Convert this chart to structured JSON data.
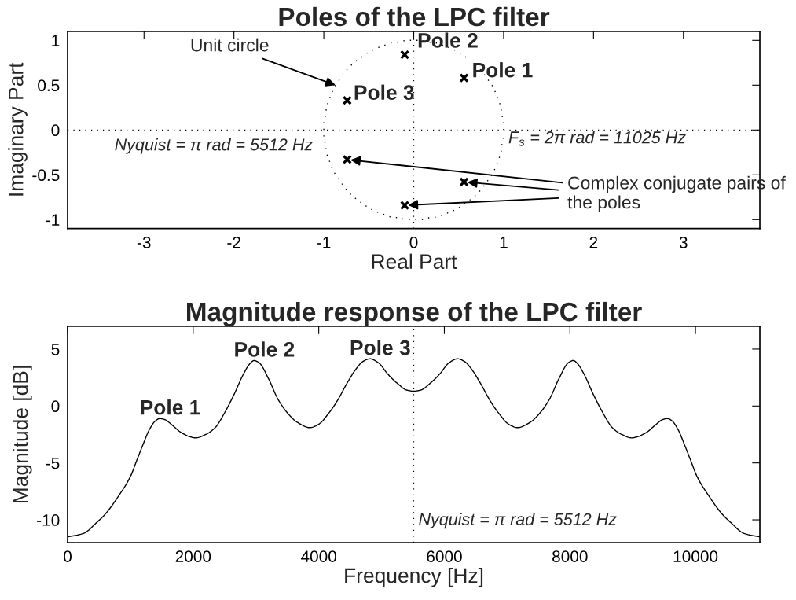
{
  "chart_data": [
    {
      "type": "scatter",
      "title": "Poles of the LPC filter",
      "xlabel": "Real Part",
      "ylabel": "Imaginary Part",
      "xlim": [
        -3.85,
        3.85
      ],
      "ylim": [
        -1.1,
        1.1
      ],
      "xticks": [
        -3,
        -2,
        -1,
        0,
        1,
        2,
        3
      ],
      "yticks": [
        -1,
        -0.5,
        0,
        0.5,
        1
      ],
      "marker": "cross",
      "series": [
        {
          "type": "line",
          "line_style": "dotted",
          "marker": "none",
          "color": "#000000",
          "x": [
            1,
            1,
            0.98,
            0.97,
            0.94,
            0.91,
            0.87,
            0.82,
            0.77,
            0.71,
            0.64,
            0.57,
            0.5,
            0.42,
            0.34,
            0.26,
            0.17,
            0.09,
            0,
            -0.09,
            -0.17,
            -0.26,
            -0.34,
            -0.42,
            -0.5,
            -0.57,
            -0.64,
            -0.71,
            -0.77,
            -0.82,
            -0.87,
            -0.91,
            -0.94,
            -0.97,
            -0.98,
            -1,
            -1,
            -1,
            -0.98,
            -0.97,
            -0.94,
            -0.91,
            -0.87,
            -0.82,
            -0.77,
            -0.71,
            -0.64,
            -0.57,
            -0.5,
            -0.42,
            -0.34,
            -0.26,
            -0.17,
            -0.09,
            0,
            0.09,
            0.17,
            0.26,
            0.34,
            0.42,
            0.5,
            0.57,
            0.64,
            0.71,
            0.77,
            0.82,
            0.87,
            0.91,
            0.94,
            0.97,
            0.98,
            1
          ],
          "values": [
            0,
            0.09,
            0.17,
            0.26,
            0.34,
            0.42,
            0.5,
            0.57,
            0.64,
            0.71,
            0.77,
            0.82,
            0.87,
            0.91,
            0.94,
            0.97,
            0.98,
            1,
            1,
            1,
            0.98,
            0.97,
            0.94,
            0.91,
            0.87,
            0.82,
            0.77,
            0.71,
            0.64,
            0.57,
            0.5,
            0.42,
            0.34,
            0.26,
            0.17,
            0.09,
            0,
            -0.09,
            -0.17,
            -0.26,
            -0.34,
            -0.42,
            -0.5,
            -0.57,
            -0.64,
            -0.71,
            -0.77,
            -0.82,
            -0.87,
            -0.91,
            -0.94,
            -0.97,
            -0.98,
            -1,
            -1,
            -1,
            -0.98,
            -0.97,
            -0.94,
            -0.91,
            -0.87,
            -0.82,
            -0.77,
            -0.71,
            -0.64,
            -0.57,
            -0.5,
            -0.42,
            -0.34,
            -0.26,
            -0.17,
            -0.09
          ]
        },
        {
          "type": "scatter",
          "color": "#000000",
          "x": [
            -0.1,
            0.56,
            -0.74,
            -0.74,
            0.56,
            -0.1
          ],
          "values": [
            0.84,
            0.58,
            0.33,
            -0.33,
            -0.58,
            -0.84
          ]
        }
      ],
      "ref_lines": [
        {
          "axis": "x",
          "value": 0,
          "line_style": "dotted",
          "color": "#000000"
        },
        {
          "axis": "y",
          "value": 0,
          "line_style": "dotted",
          "color": "#000000"
        }
      ],
      "annotations": [
        {
          "text": "Unit circle",
          "x": -0.87,
          "y": 0.5
        },
        {
          "text": "Pole 2",
          "x": -0.1,
          "y": 0.84
        },
        {
          "text": "Pole 1",
          "x": 0.56,
          "y": 0.58
        },
        {
          "text": "Pole 3",
          "x": -0.74,
          "y": 0.33
        },
        {
          "text": "Nyquist = π rad = 5512 Hz",
          "x": -1,
          "y": 0
        },
        {
          "text": "F$_{s}$ = 2π rad = 11025 Hz",
          "x": 1,
          "y": 0
        },
        {
          "text": "Complex conjugate pairs of\nthe poles",
          "x": -0.74,
          "y": -0.33
        }
      ]
    },
    {
      "type": "line",
      "title": "Magnitude response of the LPC filter",
      "xlabel": "Frequency [Hz]",
      "ylabel": "Magnitude [dB]",
      "xlim": [
        0,
        11025
      ],
      "ylim": [
        -12,
        7
      ],
      "xticks": [
        0,
        2000,
        4000,
        6000,
        8000,
        10000
      ],
      "yticks": [
        -10,
        -5,
        0,
        5
      ],
      "line_style": "solid",
      "x": [
        0,
        250,
        470,
        600,
        800,
        1000,
        1100,
        1200,
        1300,
        1400,
        1470,
        1550,
        1650,
        1800,
        1950,
        2040,
        2200,
        2350,
        2500,
        2650,
        2800,
        2900,
        2970,
        3050,
        3200,
        3350,
        3500,
        3650,
        3860,
        4000,
        4150,
        4300,
        4450,
        4600,
        4700,
        4815,
        4950,
        5100,
        5250,
        5400,
        5512,
        5625,
        5775,
        5925,
        6075,
        6210,
        6325,
        6425,
        6575,
        6725,
        6875,
        7025,
        7165,
        7375,
        7525,
        7675,
        7825,
        7975,
        8055,
        8125,
        8225,
        8375,
        8525,
        8675,
        8825,
        8985,
        9075,
        9225,
        9375,
        9475,
        9555,
        9625,
        9725,
        9825,
        9925,
        10025,
        10225,
        10425,
        10555,
        10775,
        11025
      ],
      "series": [
        {
          "color": "#000000",
          "values": [
            -11.5,
            -11.2,
            -10.2,
            -9.5,
            -8.0,
            -6.2,
            -4.8,
            -3.4,
            -2.1,
            -1.3,
            -1.1,
            -1.2,
            -1.6,
            -2.3,
            -2.7,
            -2.8,
            -2.5,
            -1.9,
            -0.6,
            1.0,
            2.8,
            3.7,
            4.0,
            3.8,
            2.4,
            0.6,
            -0.6,
            -1.4,
            -1.9,
            -1.6,
            -0.7,
            0.5,
            2.0,
            3.3,
            3.9,
            4.15,
            3.8,
            2.8,
            2.0,
            1.4,
            1.3,
            1.4,
            2.0,
            2.8,
            3.8,
            4.15,
            3.9,
            3.3,
            2.0,
            0.5,
            -0.7,
            -1.6,
            -1.9,
            -1.4,
            -0.6,
            0.6,
            2.4,
            3.8,
            4.0,
            3.7,
            2.8,
            1.0,
            -0.6,
            -1.9,
            -2.5,
            -2.8,
            -2.7,
            -2.3,
            -1.6,
            -1.2,
            -1.1,
            -1.3,
            -2.1,
            -3.4,
            -4.8,
            -6.2,
            -8.0,
            -9.5,
            -10.2,
            -11.2,
            -11.5
          ]
        }
      ],
      "ref_lines": [
        {
          "axis": "x",
          "value": 5512,
          "label": "Nyquist = π rad = 5512 Hz",
          "line_style": "dotted",
          "color": "#000000"
        }
      ],
      "annotations": [
        {
          "text": "Pole 1",
          "x": 1470,
          "y": -1.1
        },
        {
          "text": "Pole 2",
          "x": 2970,
          "y": 4.0
        },
        {
          "text": "Pole 3",
          "x": 4815,
          "y": 4.15
        }
      ]
    }
  ]
}
